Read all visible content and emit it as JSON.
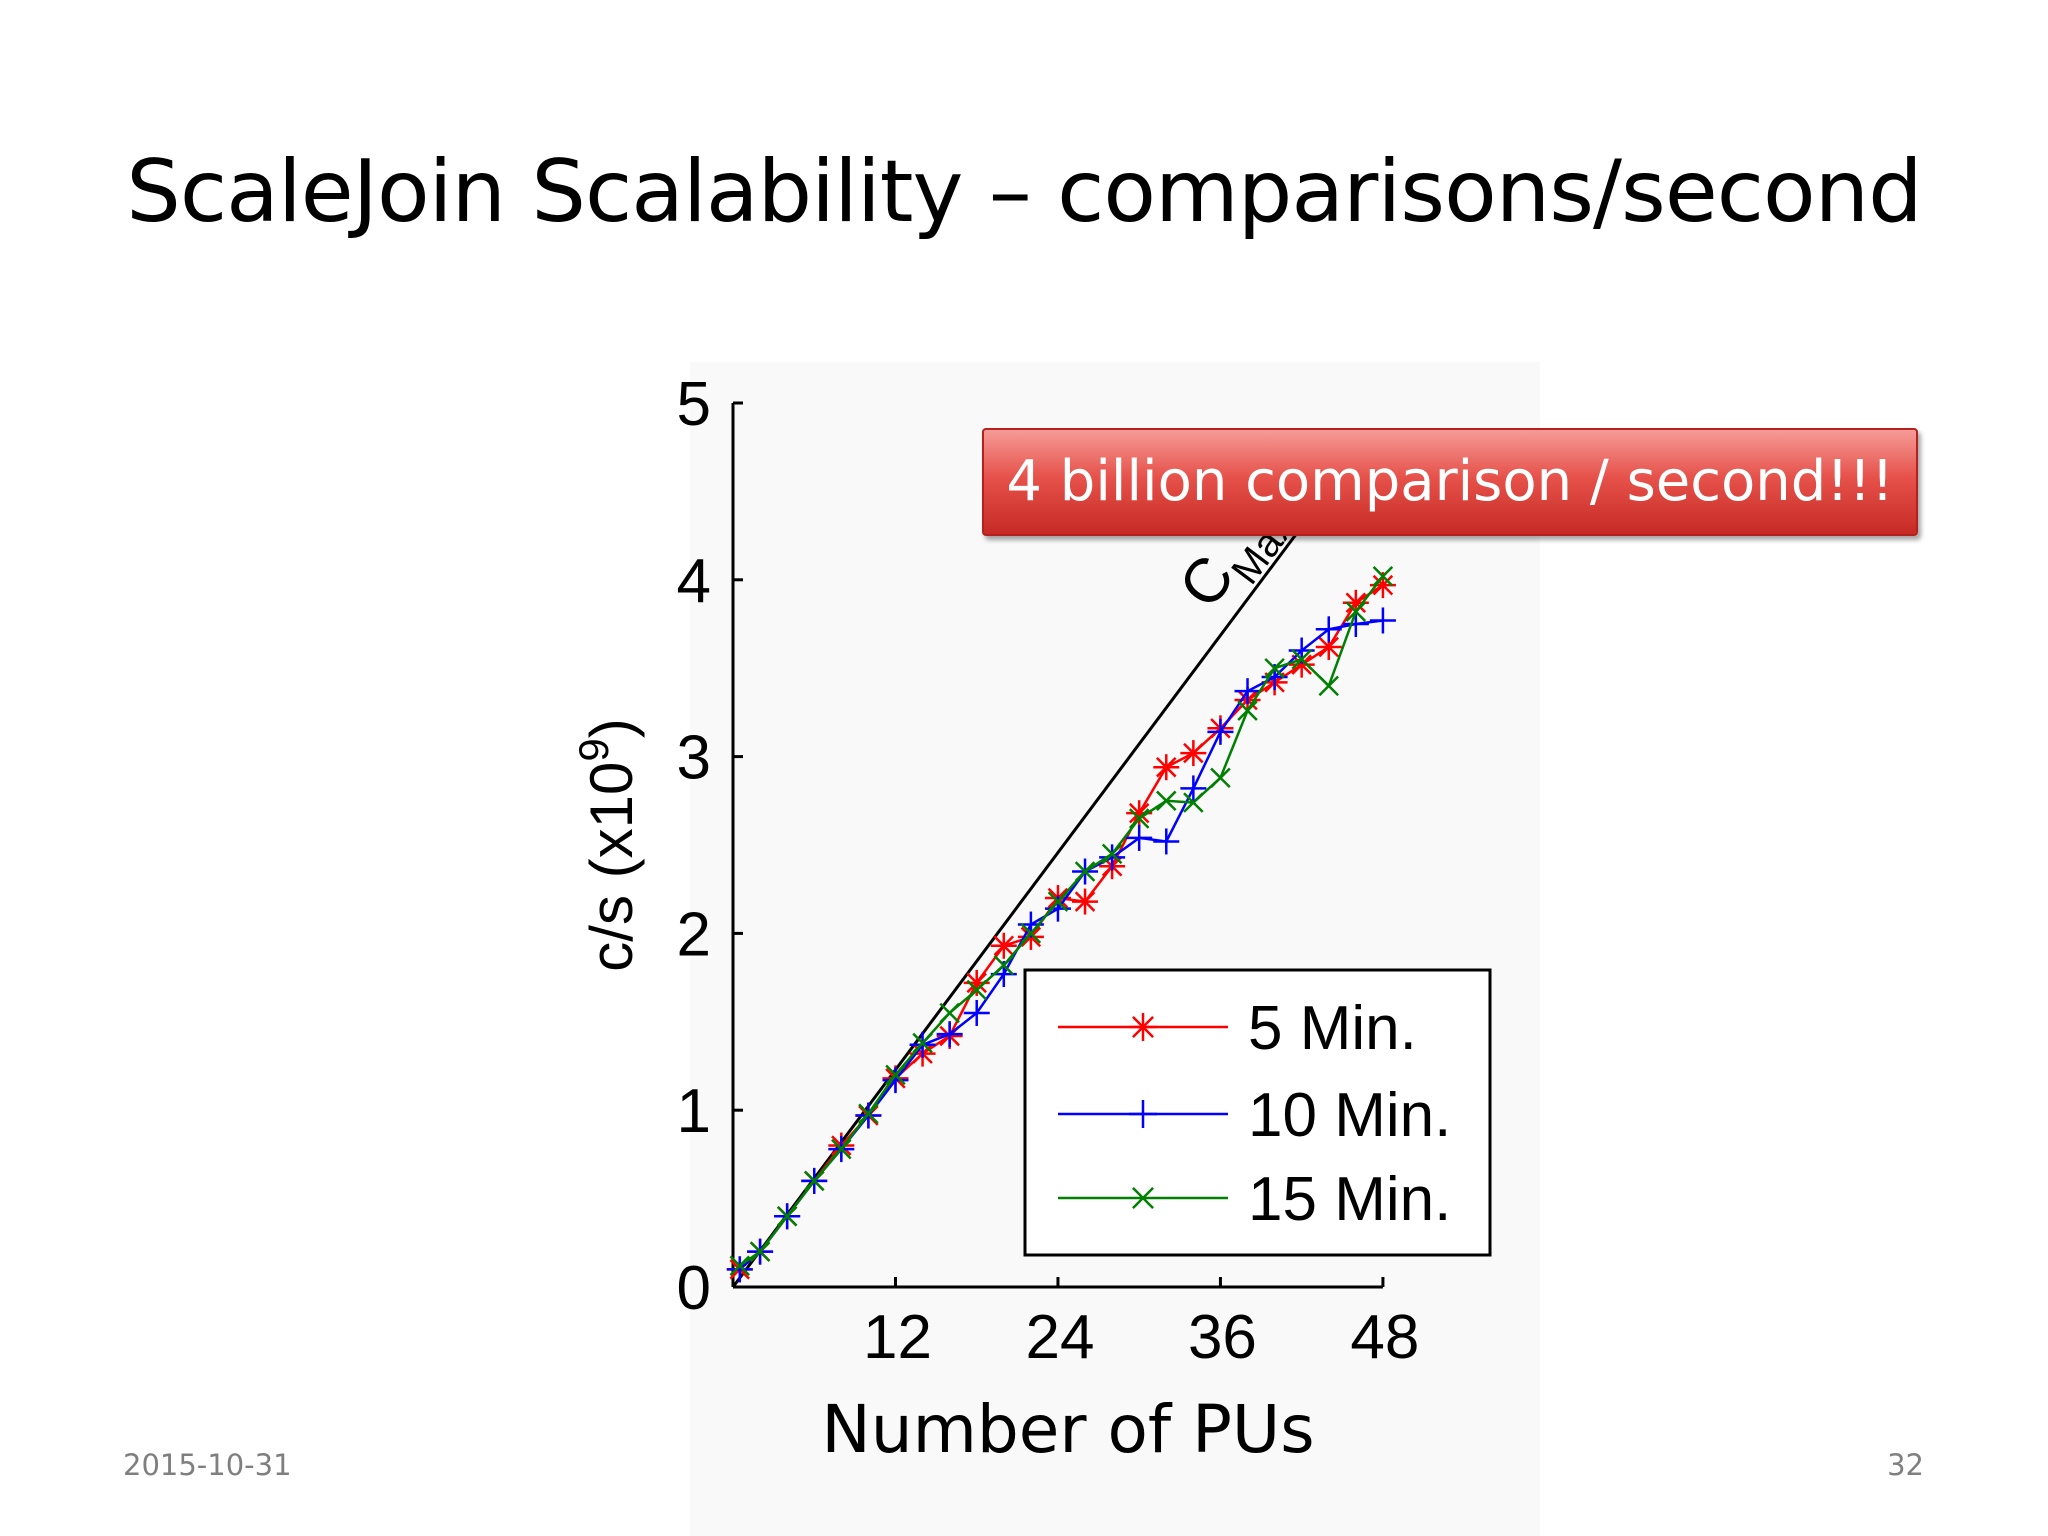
{
  "slide": {
    "title": "ScaleJoin Scalability – comparisons/second",
    "date": "2015-10-31",
    "page_number": "32"
  },
  "callout": {
    "text": "4 billion comparison / second!!!"
  },
  "chart_data": {
    "type": "line",
    "xlabel": "Number of PUs",
    "ylabel": "c/s (x10^9)",
    "xticks": [
      12,
      24,
      36,
      48
    ],
    "yticks": [
      0,
      1,
      2,
      3,
      4,
      5
    ],
    "xlim": [
      0,
      50
    ],
    "ylim": [
      0,
      5
    ],
    "grid": false,
    "legend_position": "bottom-right",
    "reference_line": {
      "label": "C",
      "label_subscript": "Max",
      "x": [
        0,
        42
      ],
      "y": [
        0,
        4.3
      ]
    },
    "series": [
      {
        "name": "5 Min.",
        "color": "#ff0000",
        "marker": "star",
        "x": [
          0.5,
          2,
          4,
          6,
          8,
          10,
          12,
          14,
          16,
          18,
          20,
          22,
          24,
          26,
          28,
          30,
          32,
          34,
          36,
          38,
          40,
          42,
          44,
          46,
          48
        ],
        "y": [
          0.1,
          0.2,
          0.4,
          0.6,
          0.8,
          0.97,
          1.18,
          1.32,
          1.42,
          1.72,
          1.93,
          1.98,
          2.2,
          2.18,
          2.38,
          2.68,
          2.94,
          3.02,
          3.16,
          3.32,
          3.42,
          3.52,
          3.62,
          3.87,
          3.97
        ]
      },
      {
        "name": "10 Min.",
        "color": "#0000ff",
        "marker": "plus",
        "x": [
          0.5,
          2,
          4,
          6,
          8,
          10,
          12,
          14,
          16,
          18,
          20,
          22,
          24,
          26,
          28,
          30,
          32,
          34,
          36,
          38,
          40,
          42,
          44,
          46,
          48
        ],
        "y": [
          0.1,
          0.2,
          0.4,
          0.6,
          0.78,
          0.97,
          1.17,
          1.37,
          1.43,
          1.55,
          1.77,
          2.05,
          2.14,
          2.35,
          2.43,
          2.54,
          2.52,
          2.82,
          3.14,
          3.37,
          3.45,
          3.6,
          3.72,
          3.75,
          3.77
        ]
      },
      {
        "name": "15 Min.",
        "color": "#008000",
        "marker": "x",
        "x": [
          0.5,
          2,
          4,
          6,
          8,
          10,
          12,
          14,
          16,
          18,
          20,
          22,
          24,
          26,
          28,
          30,
          32,
          34,
          36,
          38,
          40,
          42,
          44,
          46,
          48
        ],
        "y": [
          0.12,
          0.2,
          0.4,
          0.6,
          0.78,
          0.98,
          1.2,
          1.38,
          1.55,
          1.68,
          1.82,
          2.0,
          2.18,
          2.35,
          2.45,
          2.65,
          2.75,
          2.74,
          2.88,
          3.26,
          3.5,
          3.55,
          3.4,
          3.82,
          4.02
        ]
      }
    ]
  }
}
